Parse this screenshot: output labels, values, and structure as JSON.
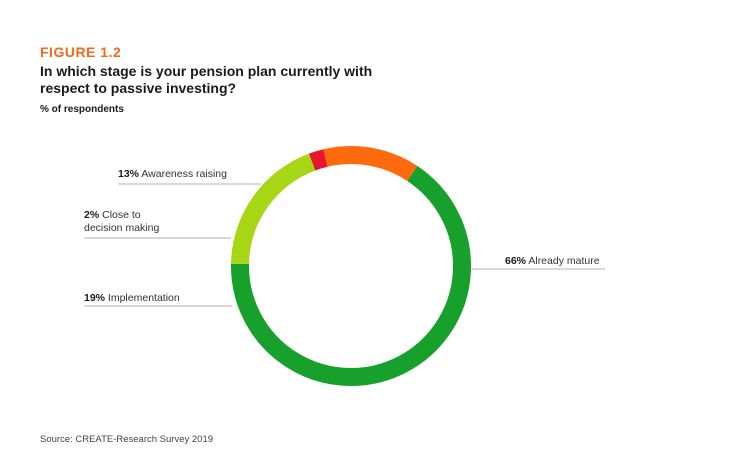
{
  "figure_label": "FIGURE 1.2",
  "title": "In which stage is your pension plan currently with respect to passive investing?",
  "subtitle": "% of respondents",
  "source": "Source: CREATE-Research Survey 2019",
  "chart_data": {
    "type": "pie",
    "style": "donut",
    "slices": [
      {
        "pct_label": "66%",
        "value": 66,
        "label": "Already mature",
        "color": "#17a02c",
        "label_lines": [
          "Already mature"
        ]
      },
      {
        "pct_label": "19%",
        "value": 19,
        "label": "Implementation",
        "color": "#a6d614",
        "label_lines": [
          "Implementation"
        ]
      },
      {
        "pct_label": "2%",
        "value": 2,
        "label": "Close to decision making",
        "color": "#e8152b",
        "label_lines": [
          "Close to",
          "decision making"
        ]
      },
      {
        "pct_label": "13%",
        "value": 13,
        "label": "Awareness raising",
        "color": "#ff6a0d",
        "label_lines": [
          "Awareness raising"
        ]
      }
    ]
  }
}
